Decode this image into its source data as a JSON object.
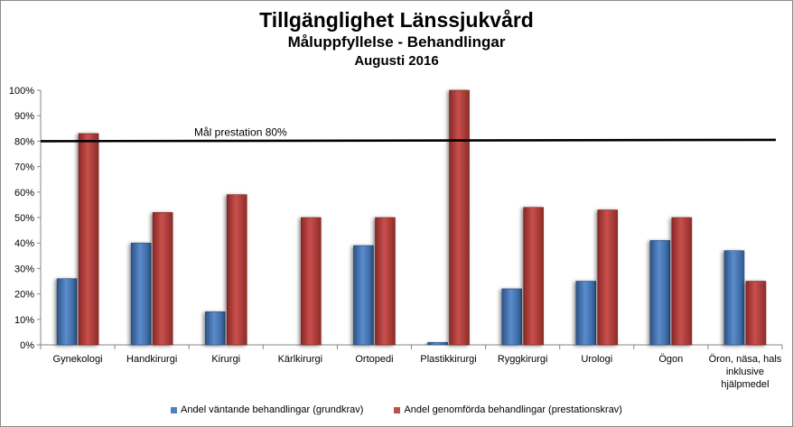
{
  "chart_data": {
    "type": "bar",
    "title": "Tillgänglighet Länssjukvård",
    "subtitle": "Måluppfyllelse - Behandlingar",
    "subtitle2": "Augusti 2016",
    "categories": [
      [
        "Gynekologi"
      ],
      [
        "Handkirurgi"
      ],
      [
        "Kirurgi"
      ],
      [
        "Kärlkirurgi"
      ],
      [
        "Ortopedi"
      ],
      [
        "Plastikkirurgi"
      ],
      [
        "Ryggkirurgi"
      ],
      [
        "Urologi"
      ],
      [
        "Ögon"
      ],
      [
        "Öron, näsa, hals",
        "inklusive",
        "hjälpmedel"
      ]
    ],
    "series": [
      {
        "name": "Andel väntande behandlingar (grundkrav)",
        "color": "#4f81bd",
        "values": [
          26,
          40,
          13,
          0,
          39,
          1,
          22,
          25,
          41,
          37
        ]
      },
      {
        "name": "Andel genomförda behandlingar (prestationskrav)",
        "color": "#c0504d",
        "values": [
          83,
          52,
          59,
          50,
          50,
          100,
          54,
          53,
          50,
          25
        ]
      }
    ],
    "ylim": [
      0,
      100
    ],
    "yticks": [
      "0%",
      "10%",
      "20%",
      "30%",
      "40%",
      "50%",
      "60%",
      "70%",
      "80%",
      "90%",
      "100%"
    ],
    "target": {
      "label": "Mål prestation  80%",
      "value": 80
    },
    "grid": false,
    "legend_position": "bottom"
  }
}
